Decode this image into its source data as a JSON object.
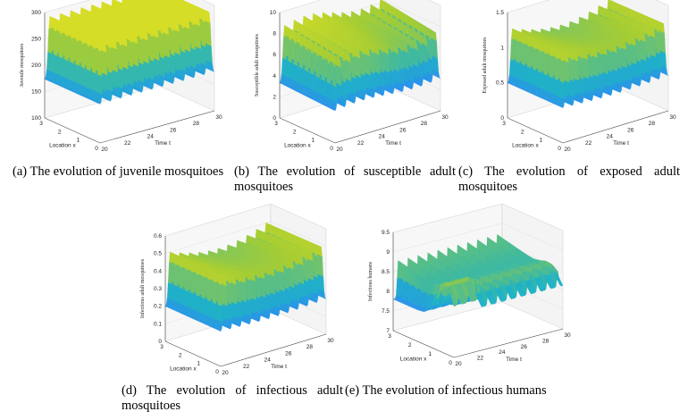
{
  "colors": {
    "surface_low": "#3d26a8",
    "surface_mid": "#1fb3c4",
    "surface_high": "#f2e21c",
    "axis": "#444444"
  },
  "panels": [
    {
      "id": "a",
      "caption": "(a) The evolution of juvenile mosquitoes",
      "chart_data": {
        "type": "surface",
        "zlabel": "Juvenile mosquitoes",
        "xlabel": "Location x",
        "ylabel": "Time t",
        "z_ticks": [
          "100",
          "150",
          "200",
          "250",
          "300"
        ],
        "x_ticks": [
          "0",
          "1",
          "2",
          "3"
        ],
        "t_ticks": [
          "20",
          "22",
          "24",
          "26",
          "28",
          "30"
        ],
        "zlim": [
          100,
          300
        ],
        "oscillations": 11,
        "peak_level": 0.95,
        "profile": "flat-peaks"
      }
    },
    {
      "id": "b",
      "caption": "(b) The evolution of susceptible adult mosquitoes",
      "chart_data": {
        "type": "surface",
        "zlabel": "Susceptible adult mosquitoes",
        "xlabel": "Location x",
        "ylabel": "Time t",
        "z_ticks": [
          "0",
          "2",
          "4",
          "6",
          "8",
          "10"
        ],
        "x_ticks": [
          "0",
          "1",
          "2",
          "3"
        ],
        "t_ticks": [
          "20",
          "22",
          "24",
          "26",
          "28",
          "30"
        ],
        "zlim": [
          0,
          10
        ],
        "oscillations": 11,
        "peak_level": 0.85,
        "profile": "sloped-peaks"
      }
    },
    {
      "id": "c",
      "caption": "(c) The evolution of exposed adult mosquitoes",
      "chart_data": {
        "type": "surface",
        "zlabel": "Exposed adult mosquitoes",
        "xlabel": "Location x",
        "ylabel": "Time t",
        "z_ticks": [
          "0",
          "0.5",
          "1",
          "1.5"
        ],
        "x_ticks": [
          "0",
          "1",
          "2",
          "3"
        ],
        "t_ticks": [
          "20",
          "22",
          "24",
          "26",
          "28",
          "30"
        ],
        "zlim": [
          0,
          1.5
        ],
        "oscillations": 11,
        "peak_level": 0.85,
        "profile": "dip-peaks"
      }
    },
    {
      "id": "d",
      "caption": "(d) The evolution of infectious adult mosquitoes",
      "chart_data": {
        "type": "surface",
        "zlabel": "Infectious adult mosquitoes",
        "xlabel": "Location x",
        "ylabel": "Time t",
        "z_ticks": [
          "0",
          "0.1",
          "0.2",
          "0.3",
          "0.4",
          "0.5",
          "0.6"
        ],
        "x_ticks": [
          "0",
          "1",
          "2",
          "3"
        ],
        "t_ticks": [
          "20",
          "22",
          "24",
          "26",
          "28",
          "30"
        ],
        "zlim": [
          0,
          0.6
        ],
        "oscillations": 11,
        "peak_level": 0.85,
        "profile": "dip-peaks"
      }
    },
    {
      "id": "e",
      "caption": "(e) The evolution of infectious humans",
      "chart_data": {
        "type": "surface",
        "zlabel": "Infectious humans",
        "xlabel": "Location x",
        "ylabel": "Time t",
        "z_ticks": [
          "7",
          "7.5",
          "8",
          "8.5",
          "9",
          "9.5"
        ],
        "x_ticks": [
          "0",
          "1",
          "2",
          "3"
        ],
        "t_ticks": [
          "20",
          "22",
          "24",
          "26",
          "28",
          "30"
        ],
        "zlim": [
          7,
          9.5
        ],
        "oscillations": 11,
        "peak_level": 0.7,
        "profile": "valley"
      }
    }
  ]
}
